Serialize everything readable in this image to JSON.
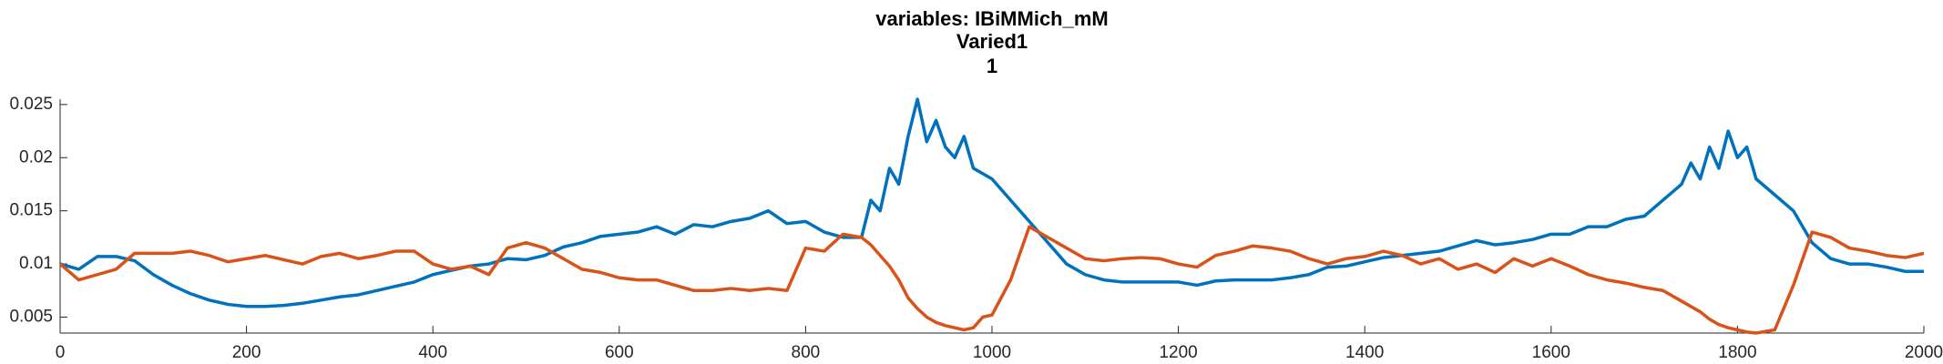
{
  "chart_data": {
    "type": "line",
    "title": "variables: IBiMMich_mM",
    "subtitle": "Varied1",
    "subtitle2": "1",
    "x": [
      0,
      20,
      40,
      60,
      80,
      100,
      120,
      140,
      160,
      180,
      200,
      220,
      240,
      260,
      280,
      300,
      320,
      340,
      360,
      380,
      400,
      420,
      440,
      460,
      480,
      500,
      520,
      540,
      560,
      580,
      600,
      620,
      640,
      660,
      680,
      700,
      720,
      740,
      760,
      780,
      800,
      820,
      840,
      860,
      870,
      880,
      890,
      900,
      910,
      920,
      930,
      940,
      950,
      960,
      970,
      980,
      990,
      1000,
      1020,
      1040,
      1060,
      1080,
      1100,
      1120,
      1140,
      1160,
      1180,
      1200,
      1220,
      1240,
      1260,
      1280,
      1300,
      1320,
      1340,
      1360,
      1380,
      1400,
      1420,
      1440,
      1460,
      1480,
      1500,
      1520,
      1540,
      1560,
      1580,
      1600,
      1620,
      1640,
      1660,
      1680,
      1700,
      1720,
      1740,
      1750,
      1760,
      1770,
      1780,
      1790,
      1800,
      1810,
      1820,
      1840,
      1860,
      1880,
      1900,
      1920,
      1940,
      1960,
      1980,
      2000
    ],
    "series": [
      {
        "color": "#0072bd",
        "values": [
          0.01,
          0.0095,
          0.0107,
          0.0107,
          0.0103,
          0.009,
          0.008,
          0.0072,
          0.0066,
          0.0062,
          0.006,
          0.006,
          0.0061,
          0.0063,
          0.0066,
          0.0069,
          0.0071,
          0.0075,
          0.0079,
          0.0083,
          0.009,
          0.0094,
          0.0098,
          0.01,
          0.0105,
          0.0104,
          0.0108,
          0.0116,
          0.012,
          0.0126,
          0.0128,
          0.013,
          0.0135,
          0.0128,
          0.0137,
          0.0135,
          0.014,
          0.0143,
          0.015,
          0.0138,
          0.014,
          0.013,
          0.0125,
          0.0125,
          0.016,
          0.015,
          0.019,
          0.0175,
          0.022,
          0.0255,
          0.0215,
          0.0235,
          0.021,
          0.02,
          0.022,
          0.019,
          0.0185,
          0.018,
          0.016,
          0.014,
          0.012,
          0.01,
          0.009,
          0.0085,
          0.0083,
          0.0083,
          0.0083,
          0.0083,
          0.008,
          0.0084,
          0.0085,
          0.0085,
          0.0085,
          0.0087,
          0.009,
          0.0097,
          0.0098,
          0.0102,
          0.0106,
          0.0108,
          0.011,
          0.0112,
          0.0117,
          0.0122,
          0.0118,
          0.012,
          0.0123,
          0.0128,
          0.0128,
          0.0135,
          0.0135,
          0.0142,
          0.0145,
          0.016,
          0.0175,
          0.0195,
          0.018,
          0.021,
          0.019,
          0.0225,
          0.02,
          0.021,
          0.018,
          0.0165,
          0.015,
          0.012,
          0.0105,
          0.01,
          0.01,
          0.0097,
          0.0093,
          0.0093
        ]
      },
      {
        "color": "#d95319",
        "values": [
          0.01,
          0.0085,
          0.009,
          0.0095,
          0.011,
          0.011,
          0.011,
          0.0112,
          0.0108,
          0.0102,
          0.0105,
          0.0108,
          0.0104,
          0.01,
          0.0107,
          0.011,
          0.0105,
          0.0108,
          0.0112,
          0.0112,
          0.01,
          0.0095,
          0.0098,
          0.009,
          0.0115,
          0.012,
          0.0115,
          0.0105,
          0.0095,
          0.0092,
          0.0087,
          0.0085,
          0.0085,
          0.008,
          0.0075,
          0.0075,
          0.0077,
          0.0075,
          0.0077,
          0.0075,
          0.0115,
          0.0112,
          0.0128,
          0.0125,
          0.0118,
          0.0108,
          0.0098,
          0.0085,
          0.0068,
          0.0058,
          0.005,
          0.0045,
          0.0042,
          0.004,
          0.0038,
          0.004,
          0.005,
          0.0052,
          0.0085,
          0.0135,
          0.0125,
          0.0115,
          0.0105,
          0.0103,
          0.0105,
          0.0106,
          0.0105,
          0.01,
          0.0097,
          0.0108,
          0.0112,
          0.0117,
          0.0115,
          0.0112,
          0.0105,
          0.01,
          0.0105,
          0.0107,
          0.0112,
          0.0108,
          0.01,
          0.0105,
          0.0095,
          0.01,
          0.0092,
          0.0105,
          0.0098,
          0.0105,
          0.0098,
          0.009,
          0.0085,
          0.0082,
          0.0078,
          0.0075,
          0.0065,
          0.006,
          0.0055,
          0.0048,
          0.0043,
          0.004,
          0.0038,
          0.0036,
          0.0035,
          0.0038,
          0.008,
          0.013,
          0.0125,
          0.0115,
          0.0112,
          0.0108,
          0.0106,
          0.011
        ]
      }
    ],
    "xlim": [
      0,
      2000
    ],
    "xticks": [
      0,
      200,
      400,
      600,
      800,
      1000,
      1200,
      1400,
      1600,
      1800,
      2000
    ],
    "ylim": [
      0.0035,
      0.0255
    ],
    "yticks": [
      0.005,
      0.01,
      0.015,
      0.02,
      0.025
    ]
  }
}
